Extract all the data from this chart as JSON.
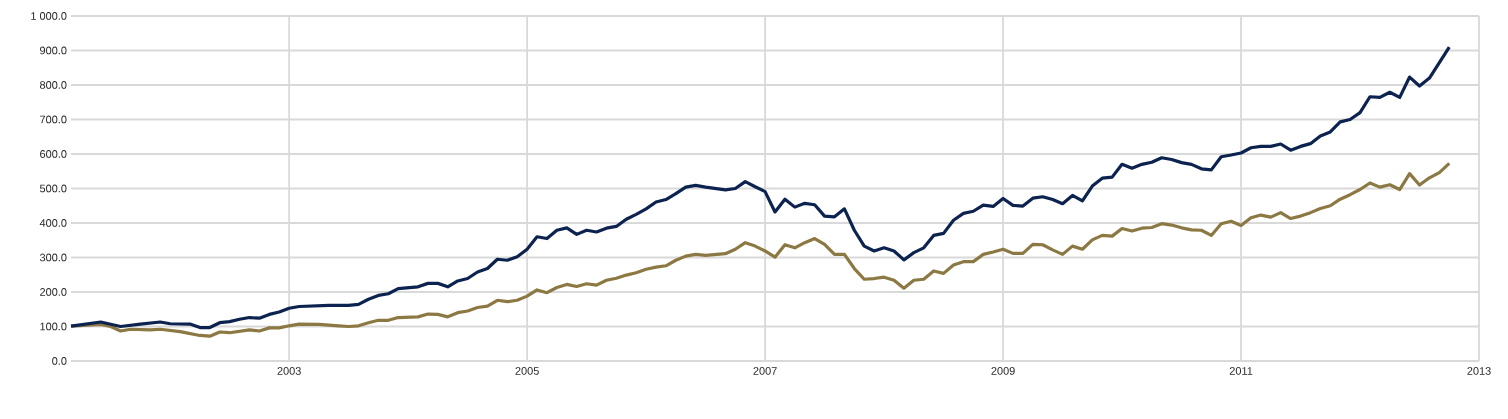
{
  "chart_data": {
    "type": "line",
    "xlim": [
      "2001-03",
      "2013-01"
    ],
    "xticks": [
      {
        "value": "2003",
        "label": "2003"
      },
      {
        "value": "2005",
        "label": "2005"
      },
      {
        "value": "2007",
        "label": "2007"
      },
      {
        "value": "2009",
        "label": "2009"
      },
      {
        "value": "2011",
        "label": "2011"
      },
      {
        "value": "2013",
        "label": "2013"
      }
    ],
    "ylim": [
      0,
      1000
    ],
    "yticks": [
      {
        "value": 0,
        "label": "0.0"
      },
      {
        "value": 100,
        "label": "100.0"
      },
      {
        "value": 200,
        "label": "200.0"
      },
      {
        "value": 300,
        "label": "300.0"
      },
      {
        "value": 400,
        "label": "400.0"
      },
      {
        "value": 500,
        "label": "500.0"
      },
      {
        "value": 600,
        "label": "600.0"
      },
      {
        "value": 700,
        "label": "700.0"
      },
      {
        "value": 800,
        "label": "800.0"
      },
      {
        "value": 900,
        "label": "900.0"
      },
      {
        "value": 1000,
        "label": "1 000.0"
      }
    ],
    "grid": true,
    "series": [
      {
        "color": "#8c7843",
        "x": [
          "2001-03",
          "2001-06",
          "2001-07",
          "2001-08",
          "2001-09",
          "2001-11",
          "2001-12",
          "2002-02",
          "2002-04",
          "2002-05",
          "2002-06",
          "2002-07",
          "2002-09",
          "2002-10",
          "2002-11",
          "2002-12",
          "2003-01",
          "2003-02",
          "2003-04",
          "2003-06",
          "2003-07",
          "2003-08",
          "2003-09",
          "2003-10",
          "2003-11",
          "2003-12",
          "2004-02",
          "2004-03",
          "2004-04",
          "2004-05",
          "2004-06",
          "2004-07",
          "2004-08",
          "2004-09",
          "2004-10",
          "2004-11",
          "2004-12",
          "2005-01",
          "2005-02",
          "2005-03",
          "2005-04",
          "2005-05",
          "2005-06",
          "2005-07",
          "2005-08",
          "2005-09",
          "2005-10",
          "2005-11",
          "2005-12",
          "2006-01",
          "2006-02",
          "2006-03",
          "2006-04",
          "2006-05",
          "2006-06",
          "2006-07",
          "2006-09",
          "2006-10",
          "2006-11",
          "2006-12",
          "2007-01",
          "2007-02",
          "2007-03",
          "2007-04",
          "2007-05",
          "2007-06",
          "2007-07",
          "2007-08",
          "2007-09",
          "2007-10",
          "2007-11",
          "2007-12",
          "2008-01",
          "2008-02",
          "2008-03",
          "2008-04",
          "2008-05",
          "2008-06",
          "2008-07",
          "2008-08",
          "2008-09",
          "2008-10",
          "2008-11",
          "2008-12",
          "2009-01",
          "2009-02",
          "2009-03",
          "2009-04",
          "2009-05",
          "2009-06",
          "2009-07",
          "2009-08",
          "2009-09",
          "2009-10",
          "2009-11",
          "2009-12",
          "2010-01",
          "2010-02",
          "2010-03",
          "2010-04",
          "2010-05",
          "2010-06",
          "2010-07",
          "2010-08",
          "2010-09",
          "2010-10",
          "2010-11",
          "2010-12",
          "2011-01",
          "2011-02",
          "2011-03",
          "2011-04",
          "2011-05",
          "2011-06",
          "2011-07",
          "2011-08",
          "2011-09",
          "2011-10",
          "2011-11",
          "2011-12",
          "2012-01",
          "2012-02",
          "2012-03",
          "2012-04",
          "2012-05",
          "2012-06",
          "2012-07",
          "2012-08",
          "2012-09",
          "2012-10"
        ],
        "values": [
          101,
          106,
          100,
          87,
          92,
          90,
          92,
          85,
          74,
          72,
          84,
          82,
          90,
          87,
          96,
          96,
          102,
          107,
          106,
          102,
          100,
          102,
          111,
          118,
          118,
          126,
          128,
          136,
          135,
          128,
          140,
          145,
          155,
          159,
          176,
          172,
          176,
          188,
          206,
          198,
          213,
          222,
          216,
          224,
          220,
          234,
          240,
          249,
          256,
          266,
          272,
          276,
          292,
          304,
          309,
          306,
          311,
          324,
          343,
          333,
          319,
          301,
          337,
          328,
          343,
          355,
          338,
          309,
          309,
          268,
          237,
          239,
          243,
          234,
          211,
          234,
          237,
          261,
          254,
          278,
          288,
          288,
          309,
          316,
          324,
          312,
          312,
          338,
          337,
          322,
          309,
          333,
          324,
          351,
          364,
          362,
          384,
          377,
          385,
          387,
          398,
          394,
          386,
          380,
          379,
          364,
          398,
          405,
          393,
          415,
          423,
          417,
          430,
          413,
          420,
          430,
          442,
          450,
          469,
          482,
          497,
          516,
          504,
          511,
          497,
          543,
          510,
          531,
          546,
          573
        ]
      },
      {
        "color": "#0c2350",
        "x": [
          "2001-03",
          "2001-06",
          "2001-08",
          "2001-10",
          "2001-12",
          "2002-01",
          "2002-03",
          "2002-04",
          "2002-05",
          "2002-06",
          "2002-07",
          "2002-08",
          "2002-09",
          "2002-10",
          "2002-11",
          "2002-12",
          "2003-01",
          "2003-02",
          "2003-05",
          "2003-07",
          "2003-08",
          "2003-09",
          "2003-10",
          "2003-11",
          "2003-12",
          "2004-02",
          "2004-03",
          "2004-04",
          "2004-05",
          "2004-06",
          "2004-07",
          "2004-08",
          "2004-09",
          "2004-10",
          "2004-11",
          "2004-12",
          "2005-01",
          "2005-02",
          "2005-03",
          "2005-04",
          "2005-05",
          "2005-06",
          "2005-07",
          "2005-08",
          "2005-09",
          "2005-10",
          "2005-11",
          "2005-12",
          "2006-01",
          "2006-02",
          "2006-03",
          "2006-04",
          "2006-05",
          "2006-06",
          "2006-07",
          "2006-09",
          "2006-10",
          "2006-11",
          "2006-12",
          "2007-01",
          "2007-02",
          "2007-03",
          "2007-04",
          "2007-05",
          "2007-06",
          "2007-07",
          "2007-08",
          "2007-09",
          "2007-10",
          "2007-11",
          "2007-12",
          "2008-01",
          "2008-02",
          "2008-03",
          "2008-04",
          "2008-05",
          "2008-06",
          "2008-07",
          "2008-08",
          "2008-09",
          "2008-10",
          "2008-11",
          "2008-12",
          "2009-01",
          "2009-02",
          "2009-03",
          "2009-04",
          "2009-05",
          "2009-06",
          "2009-07",
          "2009-08",
          "2009-09",
          "2009-10",
          "2009-11",
          "2009-12",
          "2010-01",
          "2010-02",
          "2010-03",
          "2010-04",
          "2010-05",
          "2010-06",
          "2010-07",
          "2010-08",
          "2010-09",
          "2010-10",
          "2010-11",
          "2010-12",
          "2011-01",
          "2011-02",
          "2011-03",
          "2011-04",
          "2011-05",
          "2011-06",
          "2011-07",
          "2011-08",
          "2011-09",
          "2011-10",
          "2011-11",
          "2011-12",
          "2012-01",
          "2012-02",
          "2012-03",
          "2012-04",
          "2012-05",
          "2012-06",
          "2012-07",
          "2012-08",
          "2012-09",
          "2012-10"
        ],
        "values": [
          101,
          113,
          100,
          107,
          113,
          108,
          107,
          97,
          97,
          111,
          114,
          121,
          126,
          124,
          135,
          142,
          153,
          158,
          161,
          161,
          164,
          179,
          190,
          195,
          210,
          215,
          225,
          225,
          215,
          232,
          239,
          258,
          268,
          295,
          292,
          302,
          324,
          360,
          355,
          379,
          386,
          367,
          379,
          374,
          385,
          390,
          411,
          425,
          441,
          461,
          468,
          485,
          504,
          509,
          504,
          496,
          500,
          520,
          505,
          491,
          432,
          469,
          446,
          457,
          453,
          420,
          418,
          441,
          379,
          333,
          319,
          328,
          319,
          293,
          314,
          328,
          364,
          370,
          408,
          428,
          434,
          452,
          448,
          471,
          451,
          449,
          472,
          476,
          468,
          456,
          480,
          464,
          507,
          530,
          533,
          570,
          559,
          570,
          576,
          589,
          584,
          575,
          570,
          557,
          554,
          592,
          597,
          603,
          618,
          622,
          622,
          629,
          611,
          622,
          630,
          652,
          664,
          693,
          700,
          720,
          766,
          764,
          779,
          764,
          823,
          797,
          820,
          865,
          910
        ]
      }
    ]
  }
}
